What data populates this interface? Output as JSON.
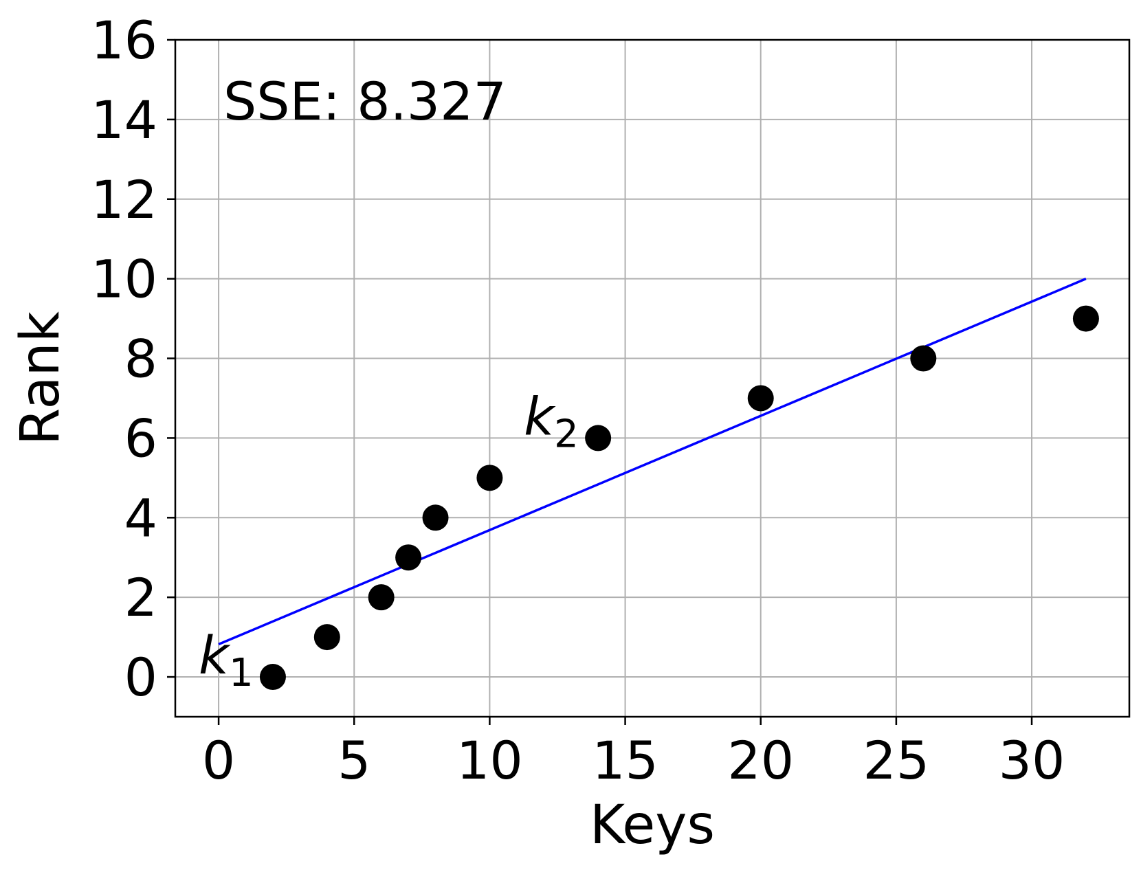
{
  "chart_data": {
    "type": "scatter",
    "title": "",
    "xlabel": "Keys",
    "ylabel": "Rank",
    "xlim": [
      -1.6,
      33.6
    ],
    "ylim": [
      -1,
      16
    ],
    "xticks": [
      0,
      5,
      10,
      15,
      20,
      25,
      30
    ],
    "yticks": [
      0,
      2,
      4,
      6,
      8,
      10,
      12,
      14,
      16
    ],
    "grid": true,
    "legend": "none",
    "points": {
      "x": [
        2,
        4,
        6,
        7,
        8,
        10,
        14,
        20,
        26,
        32
      ],
      "y": [
        0,
        1,
        2,
        3,
        4,
        5,
        6,
        7,
        8,
        9
      ],
      "color": "#000000"
    },
    "fit_line": {
      "x": [
        0,
        32
      ],
      "y": [
        0.82,
        10.0
      ],
      "color": "#0000ff"
    },
    "annotations": [
      {
        "text": "SSE: 8.327"
      }
    ],
    "point_labels": [
      {
        "base": "k",
        "sub": "1",
        "x": 2,
        "y": 0
      },
      {
        "base": "k",
        "sub": "2",
        "x": 14,
        "y": 6
      }
    ],
    "colors": {
      "grid": "#b0b0b0",
      "axes": "#000000",
      "points": "#000000",
      "line": "#0000ff"
    }
  }
}
